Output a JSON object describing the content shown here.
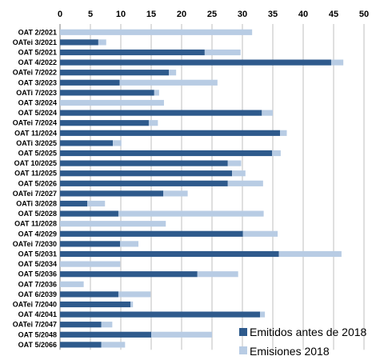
{
  "chart_data": {
    "type": "bar",
    "orientation": "horizontal",
    "stacked": true,
    "title": "",
    "xlabel": "",
    "ylabel": "",
    "xlim": [
      0,
      50
    ],
    "xticks": [
      0,
      5,
      10,
      15,
      20,
      25,
      30,
      35,
      40,
      45,
      50
    ],
    "x_axis_position": "top",
    "grid": {
      "vertical": true,
      "horizontal": false
    },
    "legend": {
      "position": "bottom-right"
    },
    "categories": [
      "OAT 2/2021",
      "OATei 3/2021",
      "OAT 5/2021",
      "OAT 4/2022",
      "OATei 7/2022",
      "OAT 3/2023",
      "OATi 7/2023",
      "OAT 3/2024",
      "OAT 5/2024",
      "OATei 7/2024",
      "OAT 11/2024",
      "OATi 3/2025",
      "OAT 5/2025",
      "OAT 10/2025",
      "OAT 11/2025",
      "OAT 5/2026",
      "OATei 7/2027",
      "OATi 3/2028",
      "OAT 5/2028",
      "OAT 11/2028",
      "OAT 4/2029",
      "OATei 7/2030",
      "OAT 5/2031",
      "OAT 5/2034",
      "OAT 5/2036",
      "OAT 7/2036",
      "OAT 6/2039",
      "OATei 7/2040",
      "OAT 4/2041",
      "OATei 7/2047",
      "OAT 5/2048",
      "OAT 5/2066"
    ],
    "series": [
      {
        "name": "Emitidos antes de 2018",
        "color": "#2e5a8c",
        "values": [
          0,
          6.3,
          23.8,
          44.6,
          17.9,
          9.8,
          15.5,
          0,
          33.2,
          14.6,
          36.2,
          8.7,
          34.9,
          27.6,
          28.3,
          27.6,
          17,
          4.5,
          9.6,
          0,
          30.1,
          9.9,
          36,
          0,
          22.6,
          0,
          9.6,
          11.6,
          32.9,
          6.8,
          15,
          6.8
        ]
      },
      {
        "name": "Emisiones 2018",
        "color": "#b8cce4",
        "values": [
          31.6,
          1.3,
          5.9,
          2,
          1.2,
          16.1,
          0.8,
          17.1,
          1.8,
          1.5,
          1.1,
          1.4,
          1.4,
          2.2,
          2.2,
          5.8,
          4,
          2.9,
          23.9,
          17.4,
          5.7,
          3,
          10.3,
          9.9,
          6.7,
          3.9,
          5.3,
          0.4,
          0.8,
          1.8,
          10,
          3.9
        ]
      }
    ]
  }
}
